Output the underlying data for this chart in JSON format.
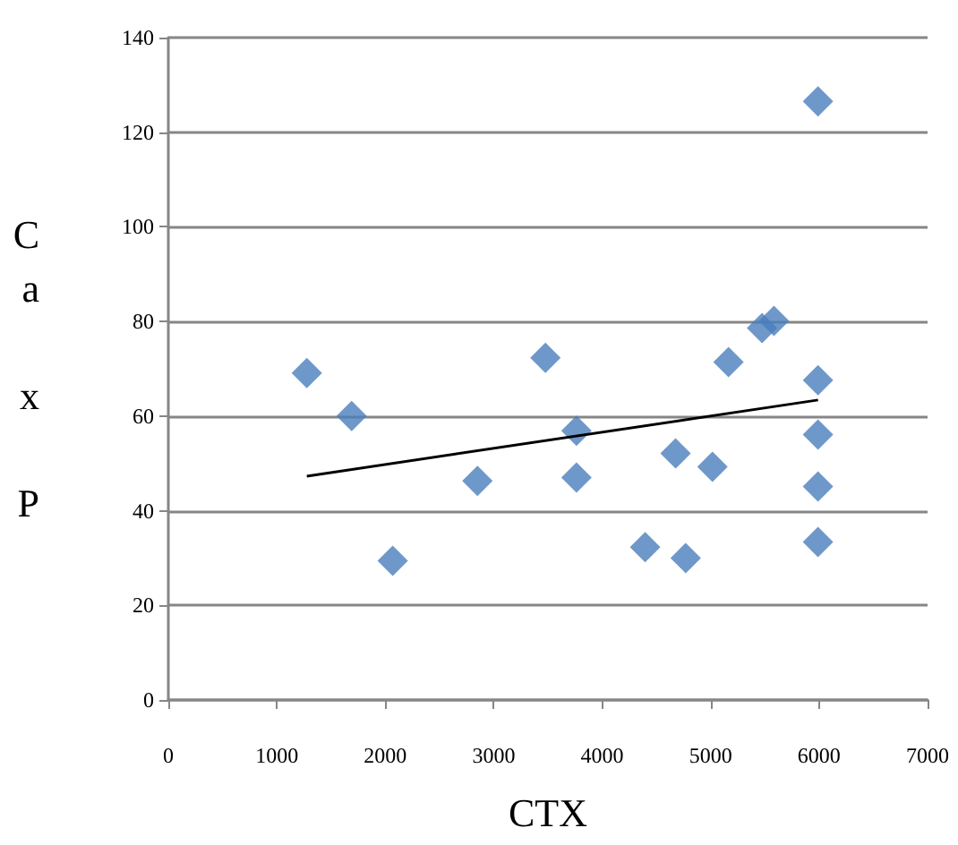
{
  "chart_data": {
    "type": "scatter",
    "xlabel": "CTX",
    "ylabel": "Ca x P",
    "xlim": [
      0,
      7000
    ],
    "xticks": [
      0,
      1000,
      2000,
      3000,
      4000,
      5000,
      6000,
      7000
    ],
    "ylim": [
      0,
      140
    ],
    "yticks": [
      0,
      20,
      40,
      60,
      80,
      100,
      120,
      140
    ],
    "grid": "y",
    "series": [
      {
        "marker": "diamond",
        "color": "#4a7ebb",
        "x": [
          1277,
          1690,
          2069,
          2850,
          3477,
          3763,
          3763,
          4396,
          4677,
          4770,
          5017,
          5165,
          5474,
          5584,
          5990,
          5990,
          5990,
          5990,
          5990
        ],
        "values": [
          69.1,
          60.0,
          29.4,
          46.3,
          72.3,
          56.9,
          47.0,
          32.3,
          52.1,
          30.0,
          49.3,
          71.4,
          78.6,
          80.1,
          126.5,
          67.6,
          56.1,
          45.1,
          33.4
        ]
      },
      {
        "type": "line",
        "marker": "none",
        "color": "#000000",
        "x": [
          1277,
          5990
        ],
        "values": [
          47.3,
          63.4
        ]
      }
    ]
  }
}
